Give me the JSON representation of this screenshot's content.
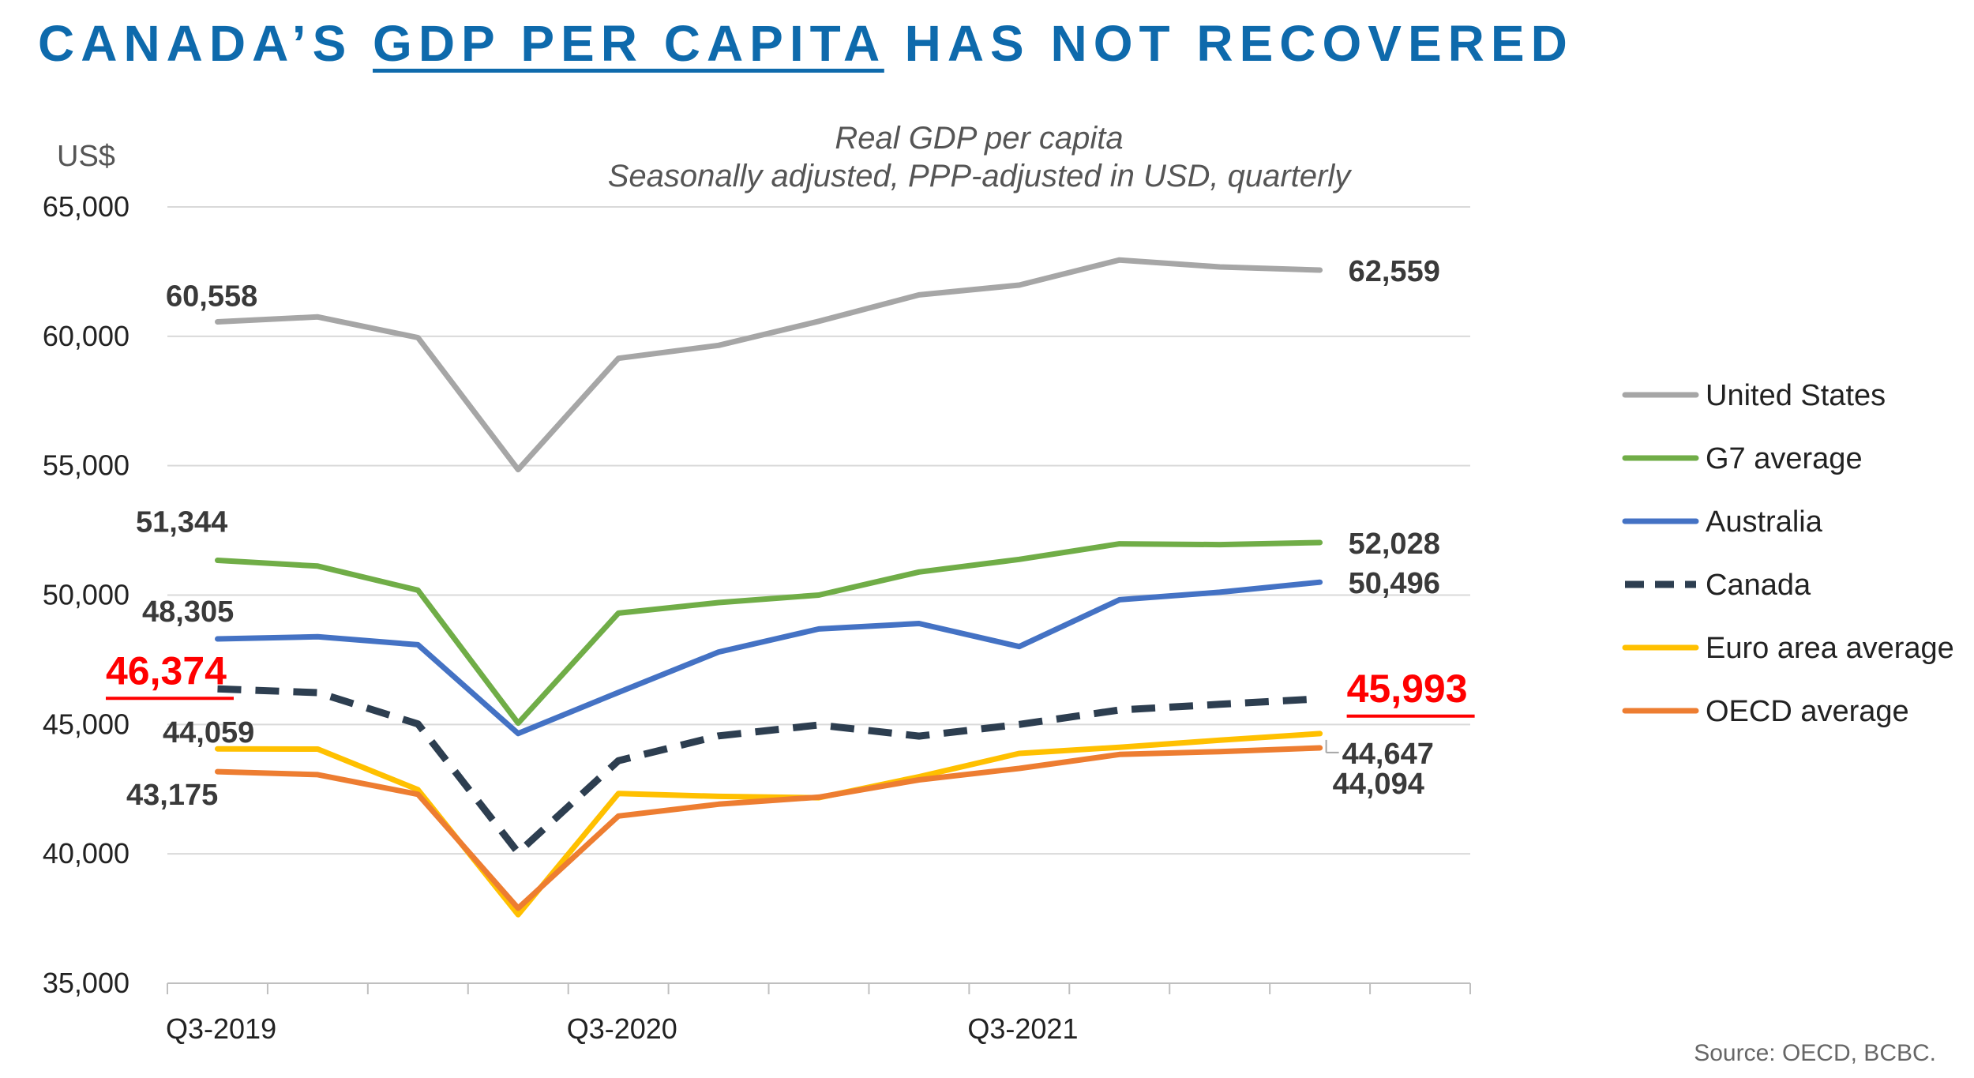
{
  "title": {
    "before": "CANADA’S ",
    "highlight": "GDP PER CAPITA",
    "after": " HAS NOT RECOVERED"
  },
  "source": "Source: OECD, BCBC.",
  "chart_data": {
    "type": "line",
    "title": "Real GDP per capita",
    "subtitle": "Seasonally adjusted, PPP-adjusted in USD, quarterly",
    "ylabel": "US$",
    "xlabel": "",
    "ylim": [
      35000,
      65000
    ],
    "yticks": [
      35000,
      40000,
      45000,
      50000,
      55000,
      60000,
      65000
    ],
    "ytick_labels": [
      "35,000",
      "40,000",
      "45,000",
      "50,000",
      "55,000",
      "60,000",
      "65,000"
    ],
    "categories": [
      "Q3-2019",
      "Q4-2019",
      "Q1-2020",
      "Q2-2020",
      "Q3-2020",
      "Q4-2020",
      "Q1-2021",
      "Q2-2021",
      "Q3-2021",
      "Q4-2021",
      "Q1-2022",
      "Q2-2022",
      "Q3-2022"
    ],
    "xtick_labels": [
      "Q3-2019",
      "",
      "",
      "",
      "Q3-2020",
      "",
      "",
      "",
      "Q3-2021",
      "",
      "",
      "",
      ""
    ],
    "grid": true,
    "legend_position": "right",
    "series": [
      {
        "name": "United States",
        "color": "#a6a6a6",
        "dashed": false,
        "values": [
          60558,
          60750,
          59950,
          54850,
          59150,
          59650,
          60580,
          61600,
          61980,
          62950,
          62680,
          62559,
          null
        ],
        "start_label": "60,558",
        "end_label": "62,559"
      },
      {
        "name": "G7 average",
        "color": "#70ad47",
        "dashed": false,
        "values": [
          51344,
          51120,
          50190,
          45050,
          49300,
          49710,
          50000,
          50890,
          51380,
          51980,
          51950,
          52028,
          null
        ],
        "start_label": "51,344",
        "end_label": "52,028"
      },
      {
        "name": "Australia",
        "color": "#4472c4",
        "dashed": false,
        "values": [
          48305,
          48390,
          48080,
          44650,
          46240,
          47800,
          48690,
          48900,
          48010,
          49820,
          50110,
          50496,
          null
        ],
        "start_label": "48,305",
        "end_label": "50,496"
      },
      {
        "name": "Canada",
        "color": "#2d3e50",
        "dashed": true,
        "values": [
          46374,
          46230,
          45020,
          40050,
          43600,
          44560,
          44980,
          44550,
          45000,
          45560,
          45780,
          45993,
          null
        ],
        "start_label": "46,374",
        "end_label": "45,993"
      },
      {
        "name": "Euro area average",
        "color": "#ffc000",
        "dashed": false,
        "values": [
          44059,
          44050,
          42480,
          37650,
          42330,
          42220,
          42170,
          42980,
          43880,
          44120,
          44390,
          44647,
          null
        ],
        "start_label": "44,059",
        "end_label": "44,647"
      },
      {
        "name": "OECD average",
        "color": "#ed7d31",
        "dashed": false,
        "values": [
          43175,
          43060,
          42300,
          37900,
          41460,
          41920,
          42190,
          42860,
          43300,
          43840,
          43950,
          44094,
          null
        ],
        "start_label": "43,175",
        "end_label": "44,094"
      }
    ]
  }
}
